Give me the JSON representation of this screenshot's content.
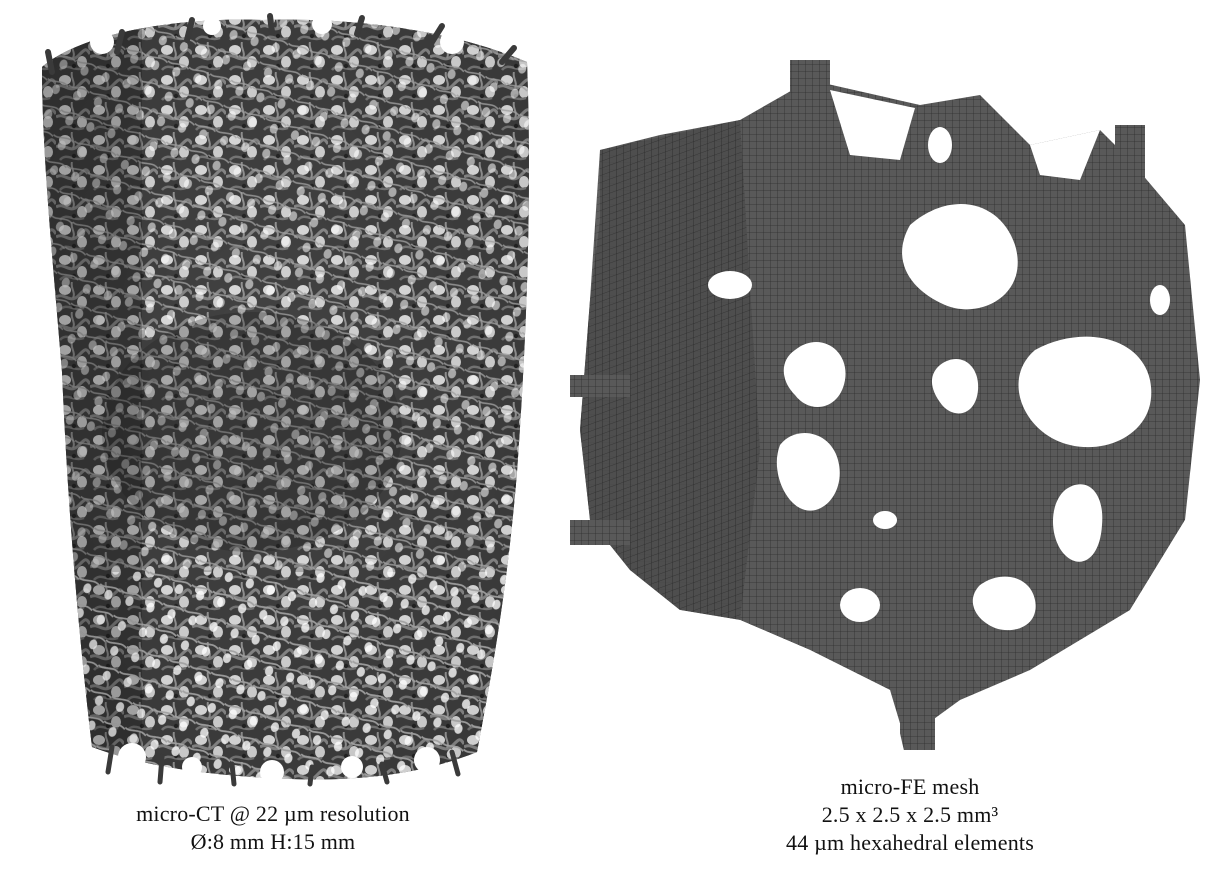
{
  "figure": {
    "left_panel": {
      "caption_line_1": "micro-CT @ 22 µm resolution",
      "caption_line_2": "Ø:8 mm H:15 mm",
      "surface_color": "#4a4a4a",
      "highlight_color": "#8a8a8a"
    },
    "right_panel": {
      "caption_line_1": "micro-FE mesh",
      "caption_line_2": "2.5 x 2.5 x 2.5 mm³",
      "caption_line_3": "44 µm hexahedral elements",
      "mesh_color": "#555555",
      "grid_color": "#2b2b2b"
    }
  }
}
